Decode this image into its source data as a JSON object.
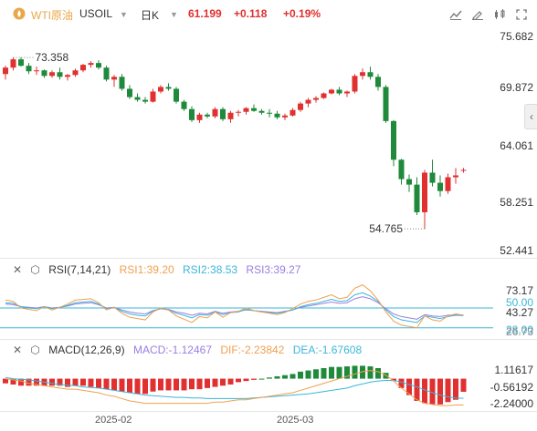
{
  "header": {
    "symbol_name": "WTI原油",
    "symbol_code": "USOIL",
    "timeframe": "日K",
    "price": "61.199",
    "change": "+0.118",
    "change_pct": "+0.19%",
    "colors": {
      "up": "#e03030",
      "down": "#1f8a3b",
      "accent": "#e8a84a"
    }
  },
  "toolbar": {
    "icons": [
      "chart-settings-icon",
      "draw-tool-icon",
      "indicator-icon",
      "fullscreen-icon"
    ]
  },
  "price_axis": [
    "75.682",
    "69.872",
    "64.061",
    "58.251",
    "52.441"
  ],
  "price_annotations": {
    "high": "73.358",
    "low": "54.765"
  },
  "rsi": {
    "title": "RSI(7,14,21)",
    "rsi1": "RSI1:39.20",
    "rsi2": "RSI2:38.53",
    "rsi3": "RSI3:39.27",
    "axis": [
      "73.17",
      "50.00",
      "43.27",
      "28.00",
      "26.73"
    ],
    "colors": {
      "rsi1": "#f0a050",
      "rsi2": "#3bb6d8",
      "rsi3": "#9a7fe0"
    }
  },
  "macd": {
    "title": "MACD(12,26,9)",
    "macd": "MACD:-1.12467",
    "dif": "DIF:-2.23842",
    "dea": "DEA:-1.67608",
    "axis": [
      "1.11617",
      "-0.56192",
      "-2.24000"
    ],
    "colors": {
      "macd": "#9a7fe0",
      "dif": "#f0a050",
      "dea": "#3bb6d8"
    }
  },
  "x_axis": [
    "2025-02",
    "2025-03"
  ],
  "candles": [
    [
      71.6,
      72.5,
      71.0,
      72.3
    ],
    [
      72.3,
      73.4,
      72.0,
      73.2
    ],
    [
      73.2,
      73.4,
      72.4,
      72.5
    ],
    [
      72.5,
      72.8,
      71.6,
      71.9
    ],
    [
      71.9,
      72.4,
      71.5,
      72.0
    ],
    [
      72.0,
      72.1,
      71.2,
      71.4
    ],
    [
      71.4,
      72.0,
      71.2,
      71.8
    ],
    [
      71.8,
      72.3,
      71.0,
      71.3
    ],
    [
      71.3,
      71.6,
      70.9,
      71.5
    ],
    [
      71.5,
      72.2,
      71.3,
      72.0
    ],
    [
      72.0,
      72.7,
      71.8,
      72.6
    ],
    [
      72.6,
      73.0,
      72.3,
      72.8
    ],
    [
      72.8,
      73.1,
      72.1,
      72.3
    ],
    [
      72.3,
      72.5,
      70.8,
      71.0
    ],
    [
      71.0,
      71.5,
      70.2,
      71.3
    ],
    [
      71.3,
      71.6,
      69.8,
      70.0
    ],
    [
      70.0,
      70.4,
      68.9,
      69.1
    ],
    [
      69.1,
      69.5,
      68.6,
      68.8
    ],
    [
      68.8,
      69.1,
      68.4,
      68.6
    ],
    [
      68.6,
      70.0,
      68.5,
      69.7
    ],
    [
      69.7,
      70.4,
      69.5,
      70.2
    ],
    [
      70.2,
      70.6,
      69.8,
      70.0
    ],
    [
      70.0,
      70.2,
      68.4,
      68.6
    ],
    [
      68.6,
      68.8,
      67.6,
      67.8
    ],
    [
      67.8,
      68.1,
      66.4,
      66.6
    ],
    [
      66.6,
      67.4,
      66.3,
      67.2
    ],
    [
      67.2,
      67.4,
      66.8,
      67.0
    ],
    [
      67.0,
      68.0,
      66.8,
      67.8
    ],
    [
      67.8,
      68.0,
      66.5,
      66.7
    ],
    [
      66.7,
      67.6,
      66.3,
      67.4
    ],
    [
      67.4,
      67.7,
      67.0,
      67.5
    ],
    [
      67.5,
      68.0,
      67.2,
      67.9
    ],
    [
      67.9,
      68.3,
      67.5,
      67.6
    ],
    [
      67.6,
      67.8,
      67.2,
      67.4
    ],
    [
      67.4,
      67.8,
      66.9,
      67.3
    ],
    [
      67.3,
      67.6,
      66.7,
      66.9
    ],
    [
      66.9,
      67.3,
      66.6,
      67.1
    ],
    [
      67.1,
      67.9,
      67.0,
      67.7
    ],
    [
      67.7,
      68.6,
      67.5,
      68.4
    ],
    [
      68.4,
      69.0,
      68.0,
      68.8
    ],
    [
      68.8,
      69.2,
      68.5,
      69.0
    ],
    [
      69.0,
      69.6,
      68.9,
      69.5
    ],
    [
      69.5,
      70.0,
      69.4,
      69.9
    ],
    [
      69.9,
      70.2,
      69.3,
      69.5
    ],
    [
      69.5,
      69.8,
      69.1,
      69.7
    ],
    [
      69.7,
      71.6,
      69.5,
      71.4
    ],
    [
      71.4,
      72.2,
      71.0,
      71.8
    ],
    [
      71.8,
      72.4,
      71.0,
      71.3
    ],
    [
      71.3,
      71.6,
      69.8,
      70.2
    ],
    [
      70.2,
      70.4,
      66.3,
      66.5
    ],
    [
      66.5,
      66.6,
      61.6,
      62.3
    ],
    [
      62.3,
      62.4,
      59.6,
      60.2
    ],
    [
      60.2,
      60.7,
      58.8,
      59.6
    ],
    [
      59.6,
      60.4,
      56.3,
      56.6
    ],
    [
      56.6,
      61.2,
      54.8,
      60.9
    ],
    [
      60.9,
      62.3,
      59.4,
      59.8
    ],
    [
      59.8,
      60.6,
      58.3,
      58.9
    ],
    [
      58.9,
      60.8,
      58.6,
      60.4
    ],
    [
      60.4,
      61.4,
      59.7,
      60.6
    ],
    [
      61.1,
      61.4,
      60.9,
      61.2
    ]
  ],
  "rsi_series": {
    "rsi1": [
      62,
      60,
      50,
      48,
      46,
      52,
      47,
      51,
      56,
      62,
      63,
      64,
      58,
      47,
      51,
      42,
      36,
      34,
      32,
      44,
      50,
      47,
      38,
      33,
      28,
      37,
      35,
      44,
      36,
      43,
      45,
      50,
      46,
      44,
      42,
      40,
      43,
      49,
      56,
      60,
      62,
      66,
      70,
      64,
      66,
      80,
      85,
      76,
      62,
      44,
      30,
      24,
      22,
      20,
      38,
      32,
      30,
      38,
      41,
      39.2
    ],
    "rsi2": [
      58,
      57,
      52,
      50,
      49,
      52,
      49,
      51,
      54,
      58,
      59,
      60,
      56,
      49,
      51,
      45,
      41,
      39,
      38,
      45,
      49,
      47,
      42,
      39,
      35,
      40,
      39,
      44,
      40,
      43,
      44,
      48,
      46,
      44,
      43,
      42,
      44,
      47,
      52,
      55,
      57,
      60,
      63,
      60,
      61,
      70,
      73,
      68,
      60,
      47,
      37,
      32,
      30,
      28,
      38,
      36,
      34,
      37,
      39,
      38.5
    ],
    "rsi3": [
      56,
      55,
      52,
      51,
      50,
      52,
      50,
      51,
      53,
      56,
      57,
      58,
      55,
      50,
      51,
      47,
      44,
      42,
      41,
      46,
      49,
      48,
      44,
      42,
      39,
      42,
      41,
      45,
      42,
      44,
      45,
      47,
      46,
      45,
      44,
      43,
      45,
      47,
      51,
      53,
      55,
      57,
      59,
      57,
      58,
      64,
      67,
      64,
      58,
      49,
      41,
      37,
      35,
      33,
      40,
      38,
      37,
      39,
      40,
      39.3
    ]
  },
  "macd_series": {
    "dif": [
      0.0,
      -0.1,
      -0.2,
      -0.4,
      -0.5,
      -0.6,
      -0.7,
      -0.8,
      -0.9,
      -0.9,
      -1.0,
      -1.1,
      -1.2,
      -1.4,
      -1.5,
      -1.7,
      -1.9,
      -2.0,
      -2.1,
      -2.1,
      -2.1,
      -2.1,
      -2.1,
      -2.1,
      -2.1,
      -2.1,
      -2.1,
      -2.0,
      -2.0,
      -1.9,
      -1.8,
      -1.8,
      -1.7,
      -1.6,
      -1.5,
      -1.4,
      -1.3,
      -1.2,
      -1.0,
      -0.8,
      -0.6,
      -0.4,
      -0.2,
      0.0,
      0.2,
      0.4,
      0.6,
      0.7,
      0.6,
      0.3,
      -0.2,
      -0.8,
      -1.3,
      -1.8,
      -2.1,
      -2.2,
      -2.3,
      -2.3,
      -2.25,
      -2.24
    ],
    "dea": [
      0.1,
      0.0,
      -0.05,
      -0.1,
      -0.2,
      -0.3,
      -0.4,
      -0.5,
      -0.55,
      -0.6,
      -0.7,
      -0.75,
      -0.8,
      -0.9,
      -1.0,
      -1.1,
      -1.2,
      -1.3,
      -1.4,
      -1.45,
      -1.5,
      -1.55,
      -1.6,
      -1.6,
      -1.65,
      -1.65,
      -1.7,
      -1.7,
      -1.7,
      -1.7,
      -1.7,
      -1.7,
      -1.65,
      -1.6,
      -1.55,
      -1.5,
      -1.45,
      -1.4,
      -1.35,
      -1.3,
      -1.2,
      -1.1,
      -1.0,
      -0.9,
      -0.8,
      -0.6,
      -0.45,
      -0.3,
      -0.2,
      -0.15,
      -0.15,
      -0.3,
      -0.5,
      -0.7,
      -0.95,
      -1.2,
      -1.4,
      -1.55,
      -1.65,
      -1.68
    ],
    "hist": [
      -0.4,
      -0.5,
      -0.6,
      -0.6,
      -0.6,
      -0.6,
      -0.6,
      -0.6,
      -0.7,
      -0.6,
      -0.6,
      -0.7,
      -0.8,
      -0.9,
      -1.0,
      -1.1,
      -1.2,
      -1.3,
      -1.3,
      -1.1,
      -1.0,
      -1.0,
      -1.0,
      -1.0,
      -0.9,
      -0.9,
      -0.8,
      -0.7,
      -0.6,
      -0.5,
      -0.3,
      -0.2,
      -0.1,
      0.0,
      0.1,
      0.2,
      0.3,
      0.4,
      0.6,
      0.7,
      0.8,
      0.9,
      1.0,
      1.0,
      1.05,
      1.1,
      1.1,
      1.05,
      0.9,
      0.5,
      -0.2,
      -0.8,
      -1.4,
      -1.9,
      -2.1,
      -2.2,
      -2.2,
      -2.0,
      -1.8,
      -1.12
    ]
  }
}
